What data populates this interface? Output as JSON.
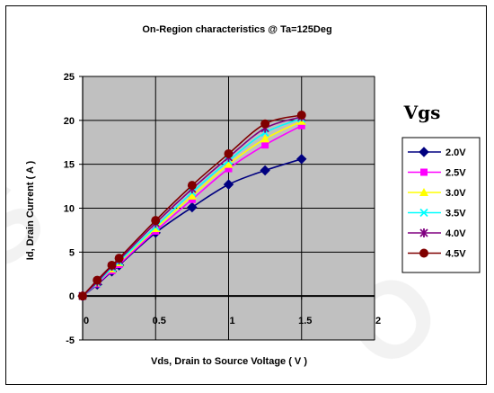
{
  "chart_data": {
    "type": "line",
    "title": "On-Region characteristics @ Ta=125Deg",
    "xlabel": "Vds, Drain to Source Voltage ( V )",
    "ylabel": "Id, Drain Current ( A )",
    "xlim": [
      0,
      2
    ],
    "ylim": [
      -5,
      25
    ],
    "xticks": [
      0,
      0.5,
      1,
      1.5,
      2
    ],
    "xtick_labels": [
      "0",
      "0.5",
      "1",
      "1.5",
      "2"
    ],
    "yticks": [
      -5,
      0,
      5,
      10,
      15,
      20,
      25
    ],
    "ytick_labels": [
      "-5",
      "0",
      "5",
      "10",
      "15",
      "20",
      "25"
    ],
    "grid": true,
    "legend_title": "Vgs",
    "legend_position": "right",
    "x": [
      0,
      0.1,
      0.2,
      0.25,
      0.5,
      0.75,
      1.0,
      1.25,
      1.5
    ],
    "series": [
      {
        "name": "2.0V",
        "color": "#000080",
        "marker": "diamond",
        "values": [
          0,
          1.3,
          2.8,
          3.5,
          7.2,
          10.1,
          12.7,
          14.3,
          15.6
        ]
      },
      {
        "name": "2.5V",
        "color": "#ff00ff",
        "marker": "square",
        "values": [
          0,
          1.4,
          2.9,
          3.6,
          7.4,
          11.0,
          14.5,
          17.2,
          19.4
        ]
      },
      {
        "name": "3.0V",
        "color": "#ffff00",
        "marker": "triangle",
        "values": [
          0,
          1.5,
          3.1,
          3.8,
          7.7,
          11.4,
          15.0,
          17.9,
          19.9
        ]
      },
      {
        "name": "3.5V",
        "color": "#00ffff",
        "marker": "x",
        "values": [
          0,
          1.5,
          3.2,
          3.9,
          7.9,
          11.8,
          15.4,
          18.6,
          20.2
        ]
      },
      {
        "name": "4.0V",
        "color": "#800080",
        "marker": "star",
        "values": [
          0,
          1.6,
          3.4,
          4.1,
          8.3,
          12.2,
          15.8,
          19.1,
          20.4
        ]
      },
      {
        "name": "4.5V",
        "color": "#800000",
        "marker": "circle",
        "values": [
          0,
          1.8,
          3.5,
          4.3,
          8.6,
          12.6,
          16.2,
          19.6,
          20.6
        ]
      }
    ]
  }
}
